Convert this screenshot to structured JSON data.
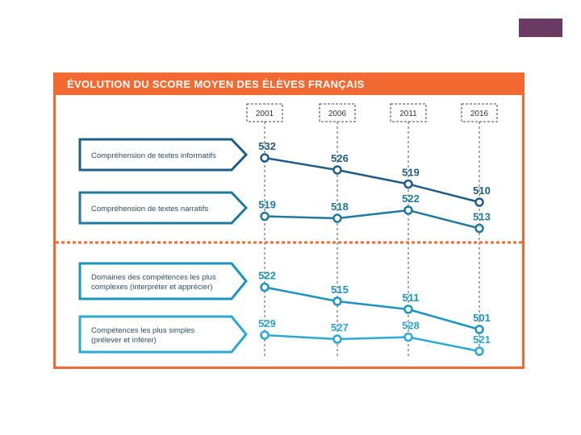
{
  "slide": {
    "corner_color": "#6b3a64"
  },
  "chart_data": {
    "type": "line",
    "title": "ÉVOLUTION DU SCORE MOYEN DES ÉLÈVES FRANÇAIS",
    "x": [
      "2001",
      "2006",
      "2011",
      "2016"
    ],
    "series": [
      {
        "name": "Compréhension de textes informatifs",
        "values": [
          532,
          526,
          519,
          510
        ],
        "color": "#1f5d88",
        "group": "top"
      },
      {
        "name": "Compréhension de textes narratifs",
        "values": [
          519,
          518,
          522,
          513
        ],
        "color": "#1f7aa0",
        "group": "top"
      },
      {
        "name": "Domaines des compétences les plus complexes (interpréter et apprécier)",
        "values": [
          522,
          515,
          511,
          501
        ],
        "color": "#1a94c4",
        "group": "bottom"
      },
      {
        "name": "Compétences les plus simples (prélever et inférer)",
        "values": [
          529,
          527,
          528,
          521
        ],
        "color": "#29a9d6",
        "group": "bottom"
      }
    ],
    "series_labels": [
      [
        "Compréhension de textes informatifs"
      ],
      [
        "Compréhension de textes narratifs"
      ],
      [
        "Domaines des compétences les plus",
        "complexes (interpréter et apprécier)"
      ],
      [
        "Compétences les plus simples",
        "(prélever et inférer)"
      ]
    ],
    "accent_color": "#f26a31",
    "grid": false
  }
}
